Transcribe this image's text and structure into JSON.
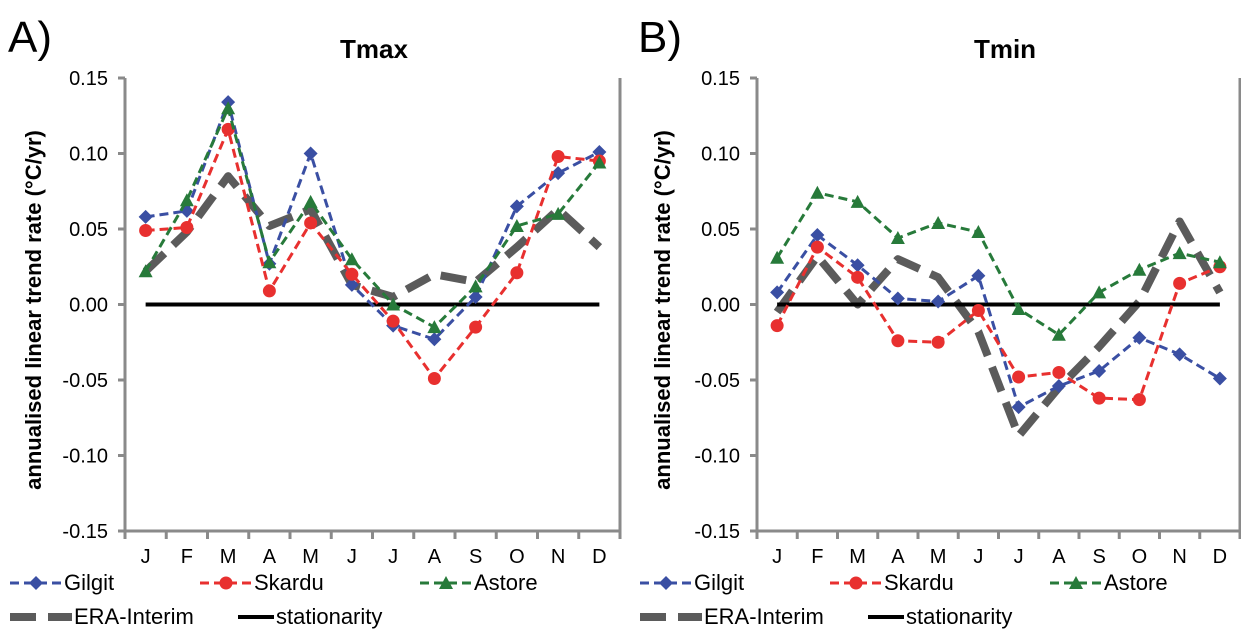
{
  "chart_data": [
    {
      "type": "line",
      "panel_label": "A)",
      "title": "Tmax",
      "ylabel": "annualised linear trend  rate (°C/yr)",
      "xlabel": "",
      "categories": [
        "J",
        "F",
        "M",
        "A",
        "M",
        "J",
        "J",
        "A",
        "S",
        "O",
        "N",
        "D"
      ],
      "ylim": [
        -0.15,
        0.15
      ],
      "yticks": [
        -0.15,
        -0.1,
        -0.05,
        0.0,
        0.05,
        0.1,
        0.15
      ],
      "ytick_labels": [
        "-0.15",
        "-0.10",
        "-0.05",
        "0.00",
        "0.05",
        "0.10",
        "0.15"
      ],
      "legend_position": "bottom",
      "series": [
        {
          "name": "Gilgit",
          "color": "#3a4fa3",
          "marker": "diamond",
          "style": "dashed",
          "values": [
            0.058,
            0.062,
            0.134,
            0.027,
            0.1,
            0.013,
            -0.014,
            -0.023,
            0.005,
            0.065,
            0.087,
            0.101
          ]
        },
        {
          "name": "Skardu",
          "color": "#e8302f",
          "marker": "circle",
          "style": "dashed",
          "values": [
            0.049,
            0.051,
            0.116,
            0.009,
            0.054,
            0.02,
            -0.011,
            -0.049,
            -0.015,
            0.021,
            0.098,
            0.095
          ]
        },
        {
          "name": "Astore",
          "color": "#277a3a",
          "marker": "triangle",
          "style": "dashed",
          "values": [
            0.022,
            0.069,
            0.13,
            0.028,
            0.068,
            0.03,
            0.0,
            -0.015,
            0.012,
            0.052,
            0.06,
            0.094
          ]
        },
        {
          "name": "ERA-Interim",
          "color": "#5b5b5b",
          "marker": "none",
          "style": "thick-dashed",
          "values": [
            0.022,
            0.048,
            0.085,
            0.052,
            0.063,
            0.013,
            0.005,
            0.02,
            0.015,
            0.038,
            0.063,
            0.038
          ]
        },
        {
          "name": "stationarity",
          "color": "#000000",
          "marker": "none",
          "style": "solid",
          "values": [
            0,
            0,
            0,
            0,
            0,
            0,
            0,
            0,
            0,
            0,
            0,
            0
          ]
        }
      ]
    },
    {
      "type": "line",
      "panel_label": "B)",
      "title": "Tmin",
      "ylabel": "annualised linear trend rate (°C/yr)",
      "xlabel": "",
      "categories": [
        "J",
        "F",
        "M",
        "A",
        "M",
        "J",
        "J",
        "A",
        "S",
        "O",
        "N",
        "D"
      ],
      "ylim": [
        -0.15,
        0.15
      ],
      "yticks": [
        -0.15,
        -0.1,
        -0.05,
        0.0,
        0.05,
        0.1,
        0.15
      ],
      "ytick_labels": [
        "-0.15",
        "-0.10",
        "-0.05",
        "0.00",
        "0.05",
        "0.10",
        "0.15"
      ],
      "legend_position": "bottom",
      "series": [
        {
          "name": "Gilgit",
          "color": "#3a4fa3",
          "marker": "diamond",
          "style": "dashed",
          "values": [
            0.008,
            0.046,
            0.026,
            0.004,
            0.002,
            0.019,
            -0.068,
            -0.054,
            -0.044,
            -0.022,
            -0.033,
            -0.049
          ]
        },
        {
          "name": "Skardu",
          "color": "#e8302f",
          "marker": "circle",
          "style": "dashed",
          "values": [
            -0.014,
            0.038,
            0.018,
            -0.024,
            -0.025,
            -0.004,
            -0.048,
            -0.045,
            -0.062,
            -0.063,
            0.014,
            0.025
          ]
        },
        {
          "name": "Astore",
          "color": "#277a3a",
          "marker": "triangle",
          "style": "dashed",
          "values": [
            0.031,
            0.074,
            0.068,
            0.044,
            0.054,
            0.048,
            -0.003,
            -0.02,
            0.008,
            0.023,
            0.034,
            0.028
          ]
        },
        {
          "name": "ERA-Interim",
          "color": "#5b5b5b",
          "marker": "none",
          "style": "thick-dashed",
          "values": [
            -0.005,
            0.032,
            0.0,
            0.03,
            0.018,
            -0.018,
            -0.087,
            -0.055,
            -0.028,
            0.002,
            0.055,
            0.008
          ]
        },
        {
          "name": "stationarity",
          "color": "#000000",
          "marker": "none",
          "style": "solid",
          "values": [
            0,
            0,
            0,
            0,
            0,
            0,
            0,
            0,
            0,
            0,
            0,
            0
          ]
        }
      ]
    }
  ]
}
